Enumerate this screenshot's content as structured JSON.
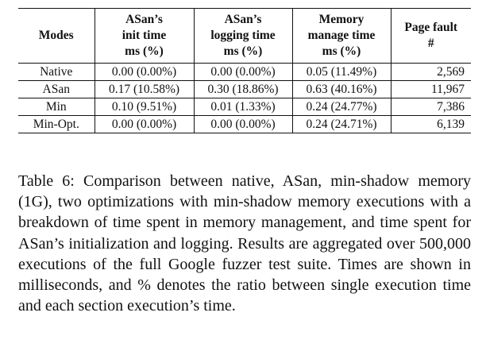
{
  "table": {
    "headers": [
      [
        "Modes"
      ],
      [
        "ASan’s",
        "init time",
        "ms (%)"
      ],
      [
        "ASan’s",
        "logging time",
        "ms (%)"
      ],
      [
        "Memory",
        "manage time",
        "ms (%)"
      ],
      [
        "Page fault",
        "#"
      ]
    ],
    "rows": [
      [
        "Native",
        "0.00 (0.00%)",
        "0.00 (0.00%)",
        "0.05 (11.49%)",
        "2,569"
      ],
      [
        "ASan",
        "0.17 (10.58%)",
        "0.30 (18.86%)",
        "0.63 (40.16%)",
        "11,967"
      ],
      [
        "Min",
        "0.10 (9.51%)",
        "0.01 (1.33%)",
        "0.24 (24.77%)",
        "7,386"
      ],
      [
        "Min-Opt.",
        "0.00 (0.00%)",
        "0.00 (0.00%)",
        "0.24 (24.71%)",
        "6,139"
      ]
    ]
  },
  "caption": "Table 6: Comparison between native, ASan, min-shadow memory (1G), two optimizations with min-shadow memory executions with a breakdown of time spent in memory management, and time spent for ASan’s initialization and logging. Results are aggregated over 500,000 executions of the full Google fuzzer test suite. Times are shown in milliseconds, and % denotes the ratio between single execution time and each section execution’s time."
}
